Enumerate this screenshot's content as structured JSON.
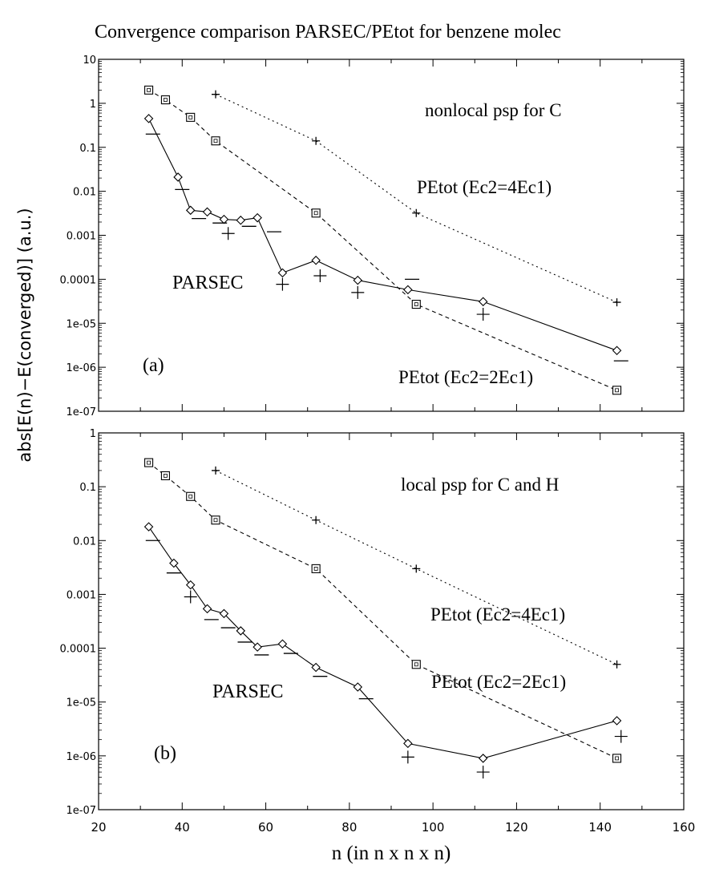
{
  "chart_data": {
    "type": "line",
    "title": "Convergence comparison PARSEC/PEtot for benzene molec",
    "xlabel": "n (in n x n x n)",
    "ylabel": "abs[E(n)−E(converged)]    (a.u.)",
    "xlim": [
      20,
      160
    ],
    "x_ticks": [
      "20",
      "40",
      "60",
      "80",
      "100",
      "120",
      "140",
      "160"
    ],
    "panels": [
      {
        "label": "(a)",
        "annotation": "nonlocal psp for C",
        "yscale": "log",
        "ylim": [
          1e-07,
          10
        ],
        "y_ticks": [
          "10",
          "1",
          "0.1",
          "0.01",
          "0.001",
          "0.0001",
          "1e-05",
          "1e-06",
          "1e-07"
        ],
        "series": [
          {
            "name": "PEtot (Ec2=4Ec1)",
            "marker": "+",
            "line": "dotted",
            "x": [
              48,
              72,
              96,
              144
            ],
            "y": [
              1.6,
              0.14,
              0.0032,
              3e-05
            ]
          },
          {
            "name": "PEtot (Ec2=2Ec1)",
            "marker": "square",
            "line": "dashed",
            "x": [
              32,
              36,
              42,
              48,
              72,
              96,
              144
            ],
            "y": [
              2.0,
              1.2,
              0.48,
              0.14,
              0.0032,
              2.7e-05,
              3e-07
            ]
          },
          {
            "name": "PARSEC",
            "marker": "diamond",
            "line": "solid",
            "x": [
              32,
              39,
              42,
              46,
              50,
              54,
              58,
              64,
              72,
              82,
              94,
              112,
              144
            ],
            "y": [
              0.45,
              0.021,
              0.0037,
              0.0034,
              0.0023,
              0.0022,
              0.0025,
              0.00014,
              0.00027,
              9.5e-05,
              5.8e-05,
              3.1e-05,
              2.4e-06
            ]
          }
        ],
        "extra_marks": [
          {
            "marker": "+",
            "x": [
              51,
              64,
              73,
              82,
              112
            ],
            "y": [
              0.0011,
              7.7e-05,
              0.00012,
              5e-05,
              1.6e-05
            ]
          },
          {
            "marker": "dash",
            "x": [
              33,
              40,
              44,
              49,
              56,
              62,
              95,
              145
            ],
            "y": [
              0.2,
              0.011,
              0.0024,
              0.0019,
              0.0016,
              0.0012,
              0.0001,
              1.4e-06
            ]
          }
        ],
        "labels": [
          "PARSEC",
          "PEtot (Ec2=4Ec1)",
          "PEtot (Ec2=2Ec1)"
        ]
      },
      {
        "label": "(b)",
        "annotation": "local psp for C and H",
        "yscale": "log",
        "ylim": [
          1e-07,
          1
        ],
        "y_ticks": [
          "1",
          "0.1",
          "0.01",
          "0.001",
          "0.0001",
          "1e-05",
          "1e-06",
          "1e-07"
        ],
        "series": [
          {
            "name": "PEtot (Ec2=4Ec1)",
            "marker": "+",
            "line": "dotted",
            "x": [
              48,
              72,
              96,
              144
            ],
            "y": [
              0.2,
              0.024,
              0.003,
              5e-05
            ]
          },
          {
            "name": "PEtot (Ec2=2Ec1)",
            "marker": "square",
            "line": "dashed",
            "x": [
              32,
              36,
              42,
              48,
              72,
              96,
              144
            ],
            "y": [
              0.28,
              0.16,
              0.066,
              0.024,
              0.003,
              5e-05,
              9e-07
            ]
          },
          {
            "name": "PARSEC",
            "marker": "diamond",
            "line": "solid",
            "x": [
              32,
              38,
              42,
              46,
              50,
              54,
              58,
              64,
              72,
              82,
              94,
              112,
              144
            ],
            "y": [
              0.018,
              0.0038,
              0.0015,
              0.00054,
              0.00044,
              0.00021,
              0.000105,
              0.00012,
              4.4e-05,
              1.9e-05,
              1.7e-06,
              9e-07,
              4.5e-06
            ]
          }
        ],
        "extra_marks": [
          {
            "marker": "+",
            "x": [
              42,
              94,
              112,
              145
            ],
            "y": [
              0.0009,
              9.5e-07,
              5e-07,
              2.3e-06
            ]
          },
          {
            "marker": "dash",
            "x": [
              33,
              38,
              47,
              51,
              55,
              59,
              66,
              73,
              84
            ],
            "y": [
              0.01,
              0.0025,
              0.00034,
              0.00024,
              0.00013,
              7.5e-05,
              8e-05,
              3e-05,
              1.15e-05
            ]
          }
        ],
        "labels": [
          "PARSEC",
          "PEtot (Ec2=4Ec1)",
          "PEtot (Ec2=2Ec1)"
        ]
      }
    ]
  }
}
